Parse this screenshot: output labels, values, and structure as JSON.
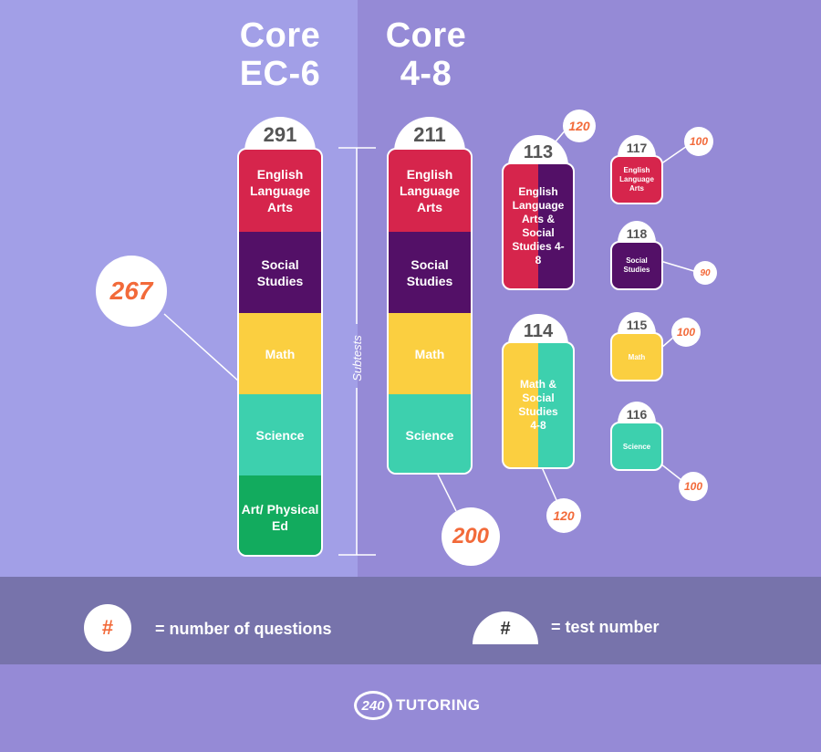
{
  "headings": {
    "left": [
      "Core",
      "EC-6"
    ],
    "right": [
      "Core",
      "4-8"
    ]
  },
  "subtests_label": "Subtests",
  "ec6": {
    "test_number": "291",
    "questions": "267",
    "segments": [
      "English Language Arts",
      "Social Studies",
      "Math",
      "Science",
      "Art/ Physical Ed"
    ]
  },
  "core48": {
    "test_number": "211",
    "questions": "200",
    "segments": [
      "English Language Arts",
      "Social Studies",
      "Math",
      "Science"
    ]
  },
  "test113": {
    "number": "113",
    "questions": "120",
    "label": "English Language Arts & Social Studies 4-8"
  },
  "test114": {
    "number": "114",
    "questions": "120",
    "label": "Math & Social Studies 4-8"
  },
  "test117": {
    "number": "117",
    "questions": "100",
    "label": "English Language Arts"
  },
  "test118": {
    "number": "118",
    "questions": "90",
    "label": "Social Studies"
  },
  "test115": {
    "number": "115",
    "questions": "100",
    "label": "Math"
  },
  "test116": {
    "number": "116",
    "questions": "100",
    "label": "Science"
  },
  "legend": {
    "bubble_symbol": "#",
    "bubble_text": "= number of questions",
    "dome_symbol": "#",
    "dome_text": "= test number"
  },
  "logo": {
    "mark": "240",
    "text": "TUTORING"
  },
  "colors": {
    "ela": "#d6254c",
    "social": "#531067",
    "math": "#fbcf40",
    "science": "#3dd0ae",
    "art": "#12ab5e",
    "accent": "#f26a3a"
  }
}
